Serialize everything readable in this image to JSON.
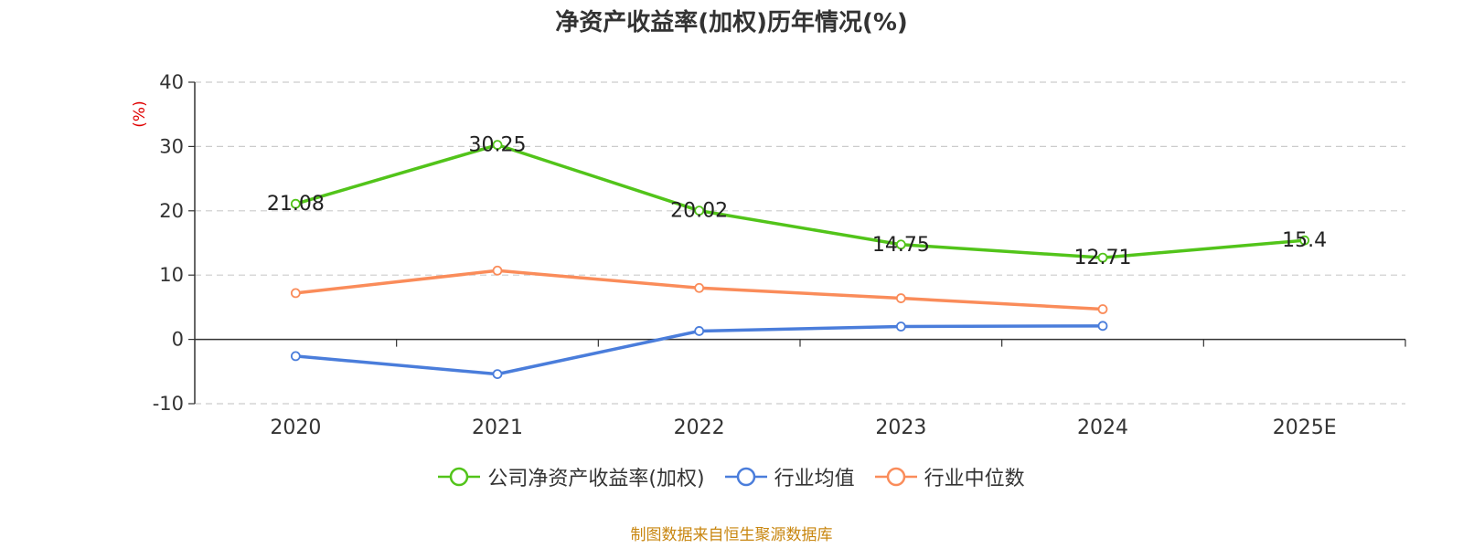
{
  "title": "净资产收益率(加权)历年情况(%)",
  "source": "制图数据来自恒生聚源数据库",
  "chart_data": {
    "type": "line",
    "title": "净资产收益率(加权)历年情况(%)",
    "ylabel": "(%)",
    "xlabel": "",
    "ylim": [
      -10,
      40
    ],
    "yticks": [
      "40",
      "30",
      "20",
      "10",
      "0",
      "-10"
    ],
    "categories": [
      "2020",
      "2021",
      "2022",
      "2023",
      "2024",
      "2025E"
    ],
    "grid": true,
    "legend_position": "bottom",
    "series": [
      {
        "name": "公司净资产收益率(加权)",
        "color": "#52c41a",
        "values": [
          21.08,
          30.25,
          20.02,
          14.75,
          12.71,
          15.4
        ],
        "labels": [
          "21.08",
          "30.25",
          "20.02",
          "14.75",
          "12.71",
          "15.4"
        ]
      },
      {
        "name": "行业均值",
        "color": "#4a7ddb",
        "values": [
          -2.6,
          -5.4,
          1.3,
          2.0,
          2.1,
          null
        ]
      },
      {
        "name": "行业中位数",
        "color": "#fa8c5a",
        "values": [
          7.2,
          10.7,
          8.0,
          6.4,
          4.7,
          null
        ]
      }
    ]
  }
}
